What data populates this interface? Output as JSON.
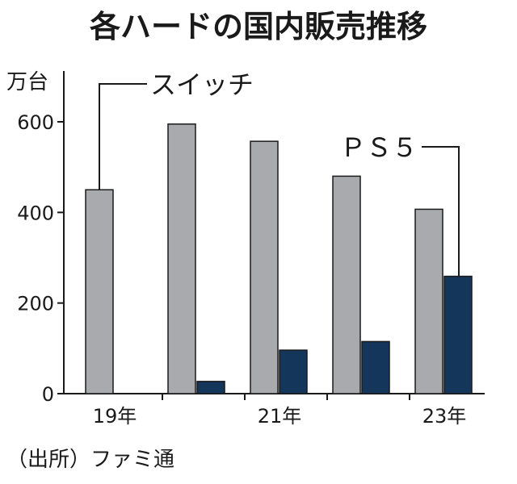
{
  "chart_data": {
    "type": "bar",
    "title": "各ハードの国内販売推移",
    "unit": "万台",
    "categories": [
      "19",
      "20",
      "21",
      "22",
      "23"
    ],
    "x_tick_labels": [
      {
        "category": "19",
        "label": "19年"
      },
      {
        "category": "21",
        "label": "21年"
      },
      {
        "category": "23",
        "label": "23年"
      }
    ],
    "series": [
      {
        "name": "スイッチ",
        "color": "#a8aaad",
        "values": [
          450,
          595,
          557,
          480,
          407
        ]
      },
      {
        "name": "ＰＳ５",
        "color": "#14365a",
        "values": [
          null,
          27,
          96,
          115,
          259
        ]
      }
    ],
    "ylim": [
      0,
      650
    ],
    "yticks": [
      0,
      200,
      400,
      600
    ],
    "grid": false,
    "legend": "direct labels",
    "source": "（出所）ファミ通"
  }
}
